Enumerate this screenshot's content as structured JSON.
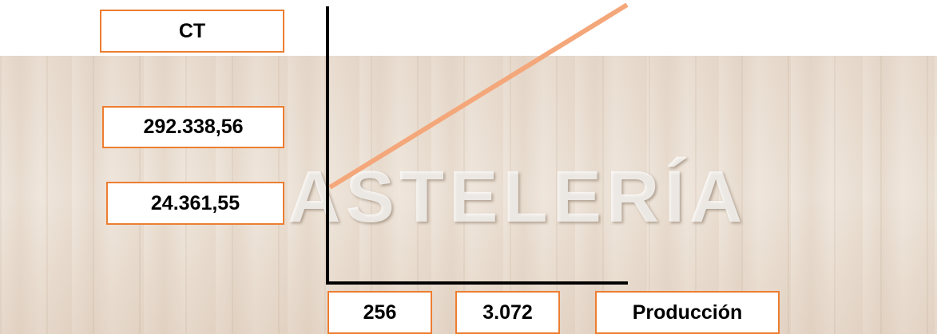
{
  "y_axis_title": "CT",
  "y_labels": [
    "292.338,56",
    "24.361,55"
  ],
  "x_labels": [
    "256",
    "3.072"
  ],
  "x_axis_title": "Producción",
  "watermark": "ASTELERÍA"
}
